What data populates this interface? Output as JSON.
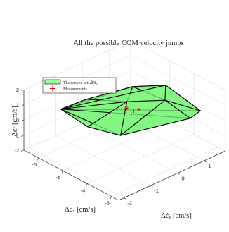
{
  "chart_data": {
    "type": "surface3d",
    "title": "All the possible COM velocity jumps",
    "xlabel": "Δċₓ [cm/s]",
    "ylabel": "Δċᵧ [cm/s]",
    "zlabel": "Δċᶻ [cm/s]",
    "xlim": [
      -6.6,
      -2.7
    ],
    "ylim": [
      -2.2,
      1.8
    ],
    "zlim": [
      -2,
      2
    ],
    "x_ticks": [
      "-6",
      "-5",
      "-4",
      "-3"
    ],
    "y_ticks": [
      "-2",
      "-1",
      "0",
      "1"
    ],
    "z_ticks": [
      "-2",
      "-1",
      "0",
      "1",
      "2"
    ],
    "grid": true,
    "legend_position": "upper-left",
    "legend": [
      {
        "label": "The convex set: 𝒳Δᵤ",
        "marker": "filled-box",
        "color": "#9cff9c"
      },
      {
        "label": "Measurements",
        "marker": "plus",
        "color": "#e00000"
      }
    ],
    "hull_vertices": [
      {
        "x": -6.4,
        "y": -1.0,
        "z": -0.1
      },
      {
        "x": -6.0,
        "y": -0.4,
        "z": 0.4
      },
      {
        "x": -5.2,
        "y": 0.6,
        "z": 1.1
      },
      {
        "x": -4.5,
        "y": 1.2,
        "z": 1.3
      },
      {
        "x": -3.4,
        "y": 1.5,
        "z": 0.3
      },
      {
        "x": -3.6,
        "y": 1.3,
        "z": -0.2
      },
      {
        "x": -4.6,
        "y": -0.4,
        "z": -0.8
      },
      {
        "x": -5.4,
        "y": -0.9,
        "z": -0.5
      },
      {
        "x": -5.0,
        "y": 0.2,
        "z": 0.6
      },
      {
        "x": -4.2,
        "y": 0.9,
        "z": 0.8
      }
    ],
    "hull_faces": [
      [
        0,
        1,
        8
      ],
      [
        1,
        2,
        8
      ],
      [
        2,
        3,
        9
      ],
      [
        2,
        9,
        8
      ],
      [
        3,
        4,
        9
      ],
      [
        4,
        5,
        9
      ],
      [
        5,
        6,
        9
      ],
      [
        6,
        8,
        9
      ],
      [
        6,
        7,
        8
      ],
      [
        7,
        0,
        8
      ],
      [
        0,
        7,
        6
      ],
      [
        0,
        6,
        5
      ],
      [
        0,
        5,
        4
      ],
      [
        0,
        4,
        3
      ],
      [
        0,
        3,
        2
      ],
      [
        0,
        2,
        1
      ]
    ],
    "measurements": [
      {
        "x": -4.8,
        "y": 0.0,
        "z": 0.5
      },
      {
        "x": -4.6,
        "y": 0.1,
        "z": 0.4
      },
      {
        "x": -4.7,
        "y": -0.1,
        "z": 0.6
      },
      {
        "x": -4.5,
        "y": 0.2,
        "z": 0.5
      },
      {
        "x": -4.9,
        "y": 0.1,
        "z": 0.4
      },
      {
        "x": -4.6,
        "y": 0.0,
        "z": 0.3
      }
    ],
    "colors": {
      "hull_fill": "#7cf57c",
      "hull_edge": "#0a0a0a",
      "measurement": "#e00000",
      "grid": "#dcdcdc",
      "pane": "#ffffff"
    }
  }
}
